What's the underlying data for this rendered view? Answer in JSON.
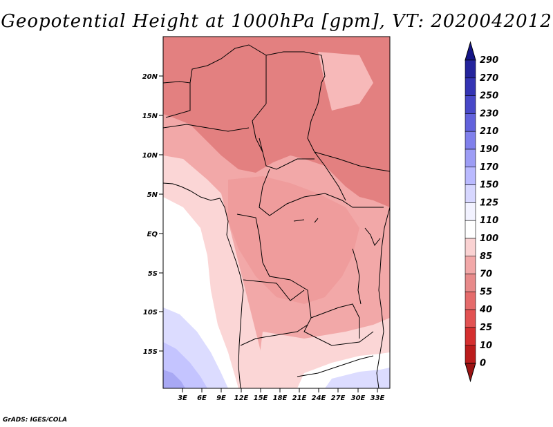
{
  "title": "Geopotential Height at 1000hPa [gpm], VT: 2020042012",
  "credit": "GrADS: IGES/COLA",
  "map": {
    "lat_labels": [
      "20N",
      "15N",
      "10N",
      "5N",
      "EQ",
      "5S",
      "10S",
      "15S"
    ],
    "lon_labels": [
      "3E",
      "6E",
      "9E",
      "12E",
      "15E",
      "18E",
      "21E",
      "24E",
      "27E",
      "30E",
      "33E"
    ]
  },
  "colorbar": {
    "levels": [
      "0",
      "10",
      "25",
      "40",
      "55",
      "70",
      "85",
      "100",
      "110",
      "125",
      "150",
      "170",
      "190",
      "210",
      "230",
      "250",
      "270",
      "290"
    ],
    "colors": [
      "#9b1313",
      "#bb1c1c",
      "#d52f2f",
      "#e25252",
      "#e56b6b",
      "#e88a8a",
      "#f2a8a8",
      "#fad2d2",
      "#ffffff",
      "#f2f2ff",
      "#d7d7ff",
      "#babaff",
      "#9d9df5",
      "#8080ec",
      "#6262dc",
      "#4848c8",
      "#3434b4",
      "#24249c",
      "#151586"
    ]
  },
  "field_colors": {
    "strong_red": "#e38080",
    "mid_red": "#ef9c9c",
    "light_red": "#f7b9b9",
    "pale_red": "#fbd6d6",
    "white": "#ffffff",
    "pale_blue": "#dcdcff",
    "light_blue": "#c4c4ff",
    "blue": "#a8a8f4"
  }
}
